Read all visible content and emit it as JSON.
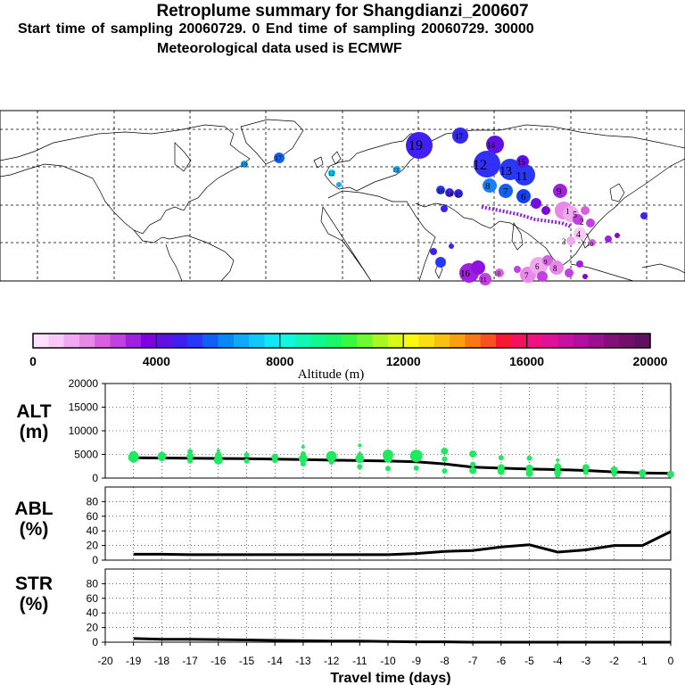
{
  "header": {
    "title": "Retroplume summary for Shangdianzi_200607",
    "subtitle": "Start time of sampling 20060729.    0     End time of sampling 20060729. 30000",
    "met_line": "Meteorological data used is ECMWF"
  },
  "colorbar": {
    "label": "Altitude (m)",
    "ticks": [
      "0",
      "4000",
      "8000",
      "12000",
      "16000",
      "20000"
    ],
    "colors": [
      "#fce0fc",
      "#f8c8f8",
      "#f0a8f0",
      "#e888e8",
      "#d860e0",
      "#c040e0",
      "#a020e0",
      "#8000e0",
      "#6010e0",
      "#4020f0",
      "#2838f8",
      "#1060f8",
      "#0888f8",
      "#10a8f8",
      "#10c8f8",
      "#10e8f8",
      "#10f8e0",
      "#10f8b8",
      "#10f890",
      "#18f868",
      "#38f840",
      "#70f830",
      "#a8f820",
      "#d8f818",
      "#f8f810",
      "#f8e010",
      "#f8c010",
      "#f8a010",
      "#f87818",
      "#f85020",
      "#f81830",
      "#f81060",
      "#f01080",
      "#e01098",
      "#c810a0",
      "#b010a0",
      "#981090",
      "#801078",
      "#701068",
      "#601060"
    ]
  },
  "map_clusters": {
    "numbers": [
      "19",
      "17",
      "16",
      "15",
      "14",
      "13",
      "12",
      "11",
      "10",
      "9",
      "8",
      "7",
      "6",
      "5",
      "4",
      "3",
      "2",
      "1"
    ]
  },
  "chart_data": [
    {
      "type": "line",
      "name": "ALT",
      "ylabel": "ALT (m)",
      "ylabel_lines": [
        "ALT",
        "(m)"
      ],
      "ylim": [
        0,
        20000
      ],
      "yticks": [
        "0",
        "5000",
        "10000",
        "15000",
        "20000"
      ],
      "x": [
        -19,
        -18,
        -17,
        -16,
        -15,
        -14,
        -13,
        -12,
        -11,
        -10,
        -9,
        -8,
        -7,
        -6,
        -5,
        -4,
        -3,
        -2,
        -1,
        0
      ],
      "series": [
        {
          "name": "mean altitude",
          "color": "#000000",
          "values": [
            4300,
            4250,
            4200,
            4150,
            4100,
            4000,
            3900,
            3800,
            3700,
            3600,
            3450,
            3000,
            2300,
            2100,
            1900,
            1800,
            1600,
            1300,
            1100,
            1000
          ]
        },
        {
          "name": "cluster altitudes",
          "color": "#20e860",
          "style": "points",
          "points": [
            [
              -19,
              4800,
              5
            ],
            [
              -19,
              4400,
              6
            ],
            [
              -18,
              4600,
              5
            ],
            [
              -18,
              4300,
              4
            ],
            [
              -17,
              5600,
              3
            ],
            [
              -17,
              4600,
              4
            ],
            [
              -17,
              3600,
              3
            ],
            [
              -16,
              5800,
              2
            ],
            [
              -16,
              4800,
              4
            ],
            [
              -16,
              3800,
              5
            ],
            [
              -15,
              4900,
              3
            ],
            [
              -15,
              3600,
              3
            ],
            [
              -14,
              4400,
              4
            ],
            [
              -14,
              3700,
              3
            ],
            [
              -13,
              6600,
              2
            ],
            [
              -13,
              5100,
              3
            ],
            [
              -13,
              4100,
              5
            ],
            [
              -13,
              3000,
              3
            ],
            [
              -12,
              4600,
              6
            ],
            [
              -12,
              3400,
              3
            ],
            [
              -11,
              6900,
              2
            ],
            [
              -11,
              4900,
              3
            ],
            [
              -11,
              4100,
              5
            ],
            [
              -11,
              2400,
              3
            ],
            [
              -10,
              4900,
              6
            ],
            [
              -10,
              4200,
              5
            ],
            [
              -10,
              2000,
              3
            ],
            [
              -9,
              4700,
              7
            ],
            [
              -9,
              4100,
              4
            ],
            [
              -9,
              2100,
              3
            ],
            [
              -8,
              5700,
              4
            ],
            [
              -8,
              4000,
              3
            ],
            [
              -8,
              1500,
              3
            ],
            [
              -7,
              5100,
              4
            ],
            [
              -7,
              2900,
              3
            ],
            [
              -7,
              1600,
              4
            ],
            [
              -6,
              4300,
              3
            ],
            [
              -6,
              2200,
              4
            ],
            [
              -6,
              1400,
              4
            ],
            [
              -5,
              4200,
              3
            ],
            [
              -5,
              2100,
              4
            ],
            [
              -5,
              1000,
              4
            ],
            [
              -4,
              3800,
              2
            ],
            [
              -4,
              2400,
              4
            ],
            [
              -4,
              1200,
              4
            ],
            [
              -4,
              600,
              3
            ],
            [
              -3,
              2200,
              4
            ],
            [
              -3,
              1200,
              3
            ],
            [
              -2,
              1700,
              4
            ],
            [
              -2,
              900,
              3
            ],
            [
              -1,
              1100,
              4
            ],
            [
              -1,
              600,
              3
            ],
            [
              0,
              800,
              4
            ]
          ]
        }
      ]
    },
    {
      "type": "line",
      "name": "ABL",
      "ylabel": "ABL (%)",
      "ylabel_lines": [
        "ABL",
        "(%)"
      ],
      "ylim": [
        0,
        100
      ],
      "yticks": [
        "0",
        "20",
        "40",
        "60",
        "80"
      ],
      "x": [
        -19,
        -18,
        -17,
        -16,
        -15,
        -14,
        -13,
        -12,
        -11,
        -10,
        -9,
        -8,
        -7,
        -6,
        -5,
        -4,
        -3,
        -2,
        -1,
        0
      ],
      "series": [
        {
          "name": "ABL fraction",
          "color": "#000000",
          "values": [
            8,
            8,
            7.5,
            7.5,
            7.5,
            7.5,
            7.5,
            7.5,
            7.5,
            7.5,
            9,
            12,
            13,
            18,
            21,
            11,
            14,
            20,
            20,
            39
          ]
        }
      ]
    },
    {
      "type": "line",
      "name": "STR",
      "ylabel": "STR (%)",
      "ylabel_lines": [
        "STR",
        "(%)"
      ],
      "ylim": [
        0,
        100
      ],
      "yticks": [
        "0",
        "20",
        "40",
        "60",
        "80"
      ],
      "x": [
        -19,
        -18,
        -17,
        -16,
        -15,
        -14,
        -13,
        -12,
        -11,
        -10,
        -9,
        -8,
        -7,
        -6,
        -5,
        -4,
        -3,
        -2,
        -1,
        0
      ],
      "series": [
        {
          "name": "stratospheric fraction",
          "color": "#000000",
          "values": [
            5,
            4,
            4,
            3.5,
            3,
            2.5,
            2,
            1.5,
            1.5,
            1,
            0.5,
            0.5,
            0,
            0,
            0,
            0,
            0,
            0,
            0,
            0
          ]
        }
      ]
    }
  ],
  "x_axis": {
    "xlim": [
      -20,
      0
    ],
    "ticks": [
      "-20",
      "-19",
      "-18",
      "-17",
      "-16",
      "-15",
      "-14",
      "-13",
      "-12",
      "-11",
      "-10",
      "-9",
      "-8",
      "-7",
      "-6",
      "-5",
      "-4",
      "-3",
      "-2",
      "-1",
      "0"
    ],
    "xlabel": "Travel time (days)"
  }
}
